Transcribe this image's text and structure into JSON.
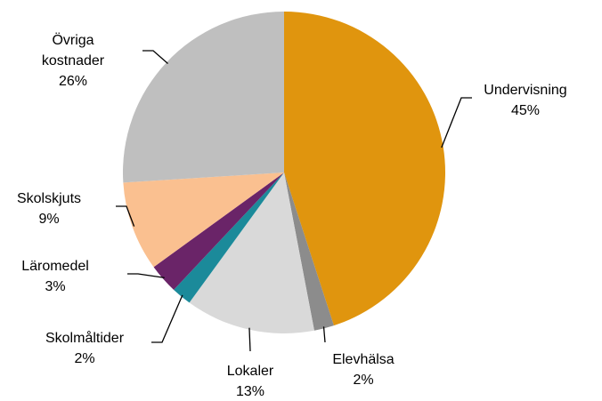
{
  "chart_data": {
    "type": "pie",
    "categories": [
      "Undervisning",
      "Elevhälsa",
      "Lokaler",
      "Skolmåltider",
      "Läromedel",
      "Skolskjuts",
      "Övriga kostnader"
    ],
    "values": [
      45,
      2,
      13,
      2,
      3,
      9,
      26
    ],
    "value_labels": [
      "45%",
      "2%",
      "13%",
      "2%",
      "3%",
      "9%",
      "26%"
    ],
    "colors": [
      "#E0950E",
      "#8C8C8C",
      "#D9D9D9",
      "#1B8A9A",
      "#6A2468",
      "#FAC090",
      "#BFBFBF"
    ]
  }
}
